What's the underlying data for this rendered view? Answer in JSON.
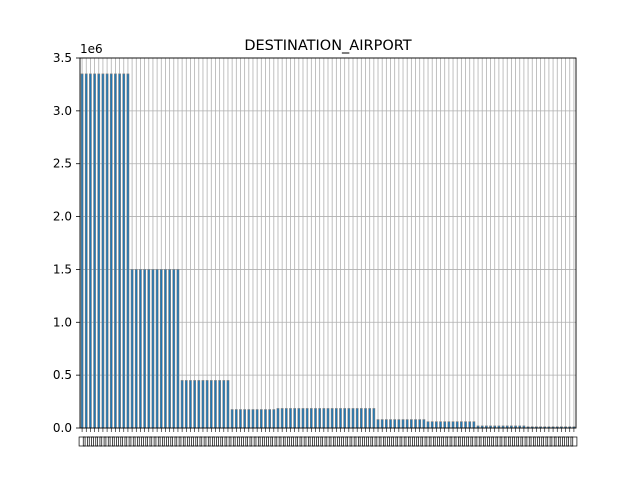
{
  "chart_data": {
    "type": "bar",
    "title": "DESTINATION_AIRPORT",
    "xlabel": "",
    "ylabel": "",
    "y_offset_label": "1e6",
    "ylim": [
      0,
      3500000
    ],
    "yticks": [
      0,
      500000,
      1000000,
      1500000,
      2000000,
      2500000,
      3000000,
      3500000
    ],
    "ytick_labels": [
      "0.0",
      "0.5",
      "1.0",
      "1.5",
      "2.0",
      "2.5",
      "3.0",
      "3.5"
    ],
    "grid": true,
    "x_tick_labels_legible": false,
    "bar_color": "#1f77b4",
    "bar_edge_color": "#808080",
    "grid_color": "#b0b0b0",
    "values": [
      3350000,
      3350000,
      3350000,
      3350000,
      3350000,
      3350000,
      3350000,
      3350000,
      3350000,
      3350000,
      3350000,
      3350000,
      1500000,
      1500000,
      1500000,
      1500000,
      1500000,
      1500000,
      1500000,
      1500000,
      1500000,
      1500000,
      1500000,
      1500000,
      450000,
      450000,
      450000,
      450000,
      450000,
      450000,
      450000,
      450000,
      450000,
      450000,
      450000,
      450000,
      175000,
      175000,
      175000,
      175000,
      175000,
      175000,
      175000,
      175000,
      175000,
      175000,
      175000,
      185000,
      185000,
      185000,
      185000,
      185000,
      185000,
      185000,
      185000,
      185000,
      185000,
      185000,
      185000,
      185000,
      185000,
      185000,
      185000,
      185000,
      185000,
      185000,
      185000,
      185000,
      185000,
      185000,
      185000,
      80000,
      80000,
      80000,
      80000,
      80000,
      80000,
      80000,
      80000,
      80000,
      80000,
      80000,
      80000,
      60000,
      60000,
      60000,
      60000,
      60000,
      60000,
      60000,
      60000,
      60000,
      60000,
      60000,
      60000,
      20000,
      20000,
      20000,
      20000,
      20000,
      20000,
      20000,
      20000,
      20000,
      20000,
      20000,
      20000,
      12000,
      12000,
      12000,
      12000,
      12000,
      12000,
      12000,
      12000,
      12000,
      12000,
      12000,
      12000
    ]
  }
}
